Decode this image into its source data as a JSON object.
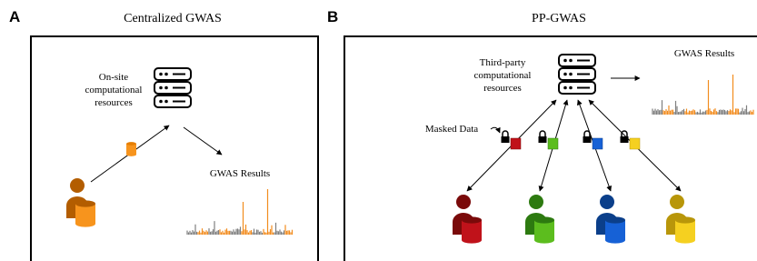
{
  "panels": [
    {
      "label": "A",
      "title": "Centralized GWAS",
      "server_label": [
        "On-site",
        "computational",
        "resources"
      ],
      "results_label": "GWAS Results"
    },
    {
      "label": "B",
      "title": "PP-GWAS",
      "server_label": [
        "Third-party",
        "computational",
        "resources"
      ],
      "results_label": "GWAS Results",
      "masked_label": "Masked Data"
    }
  ]
}
